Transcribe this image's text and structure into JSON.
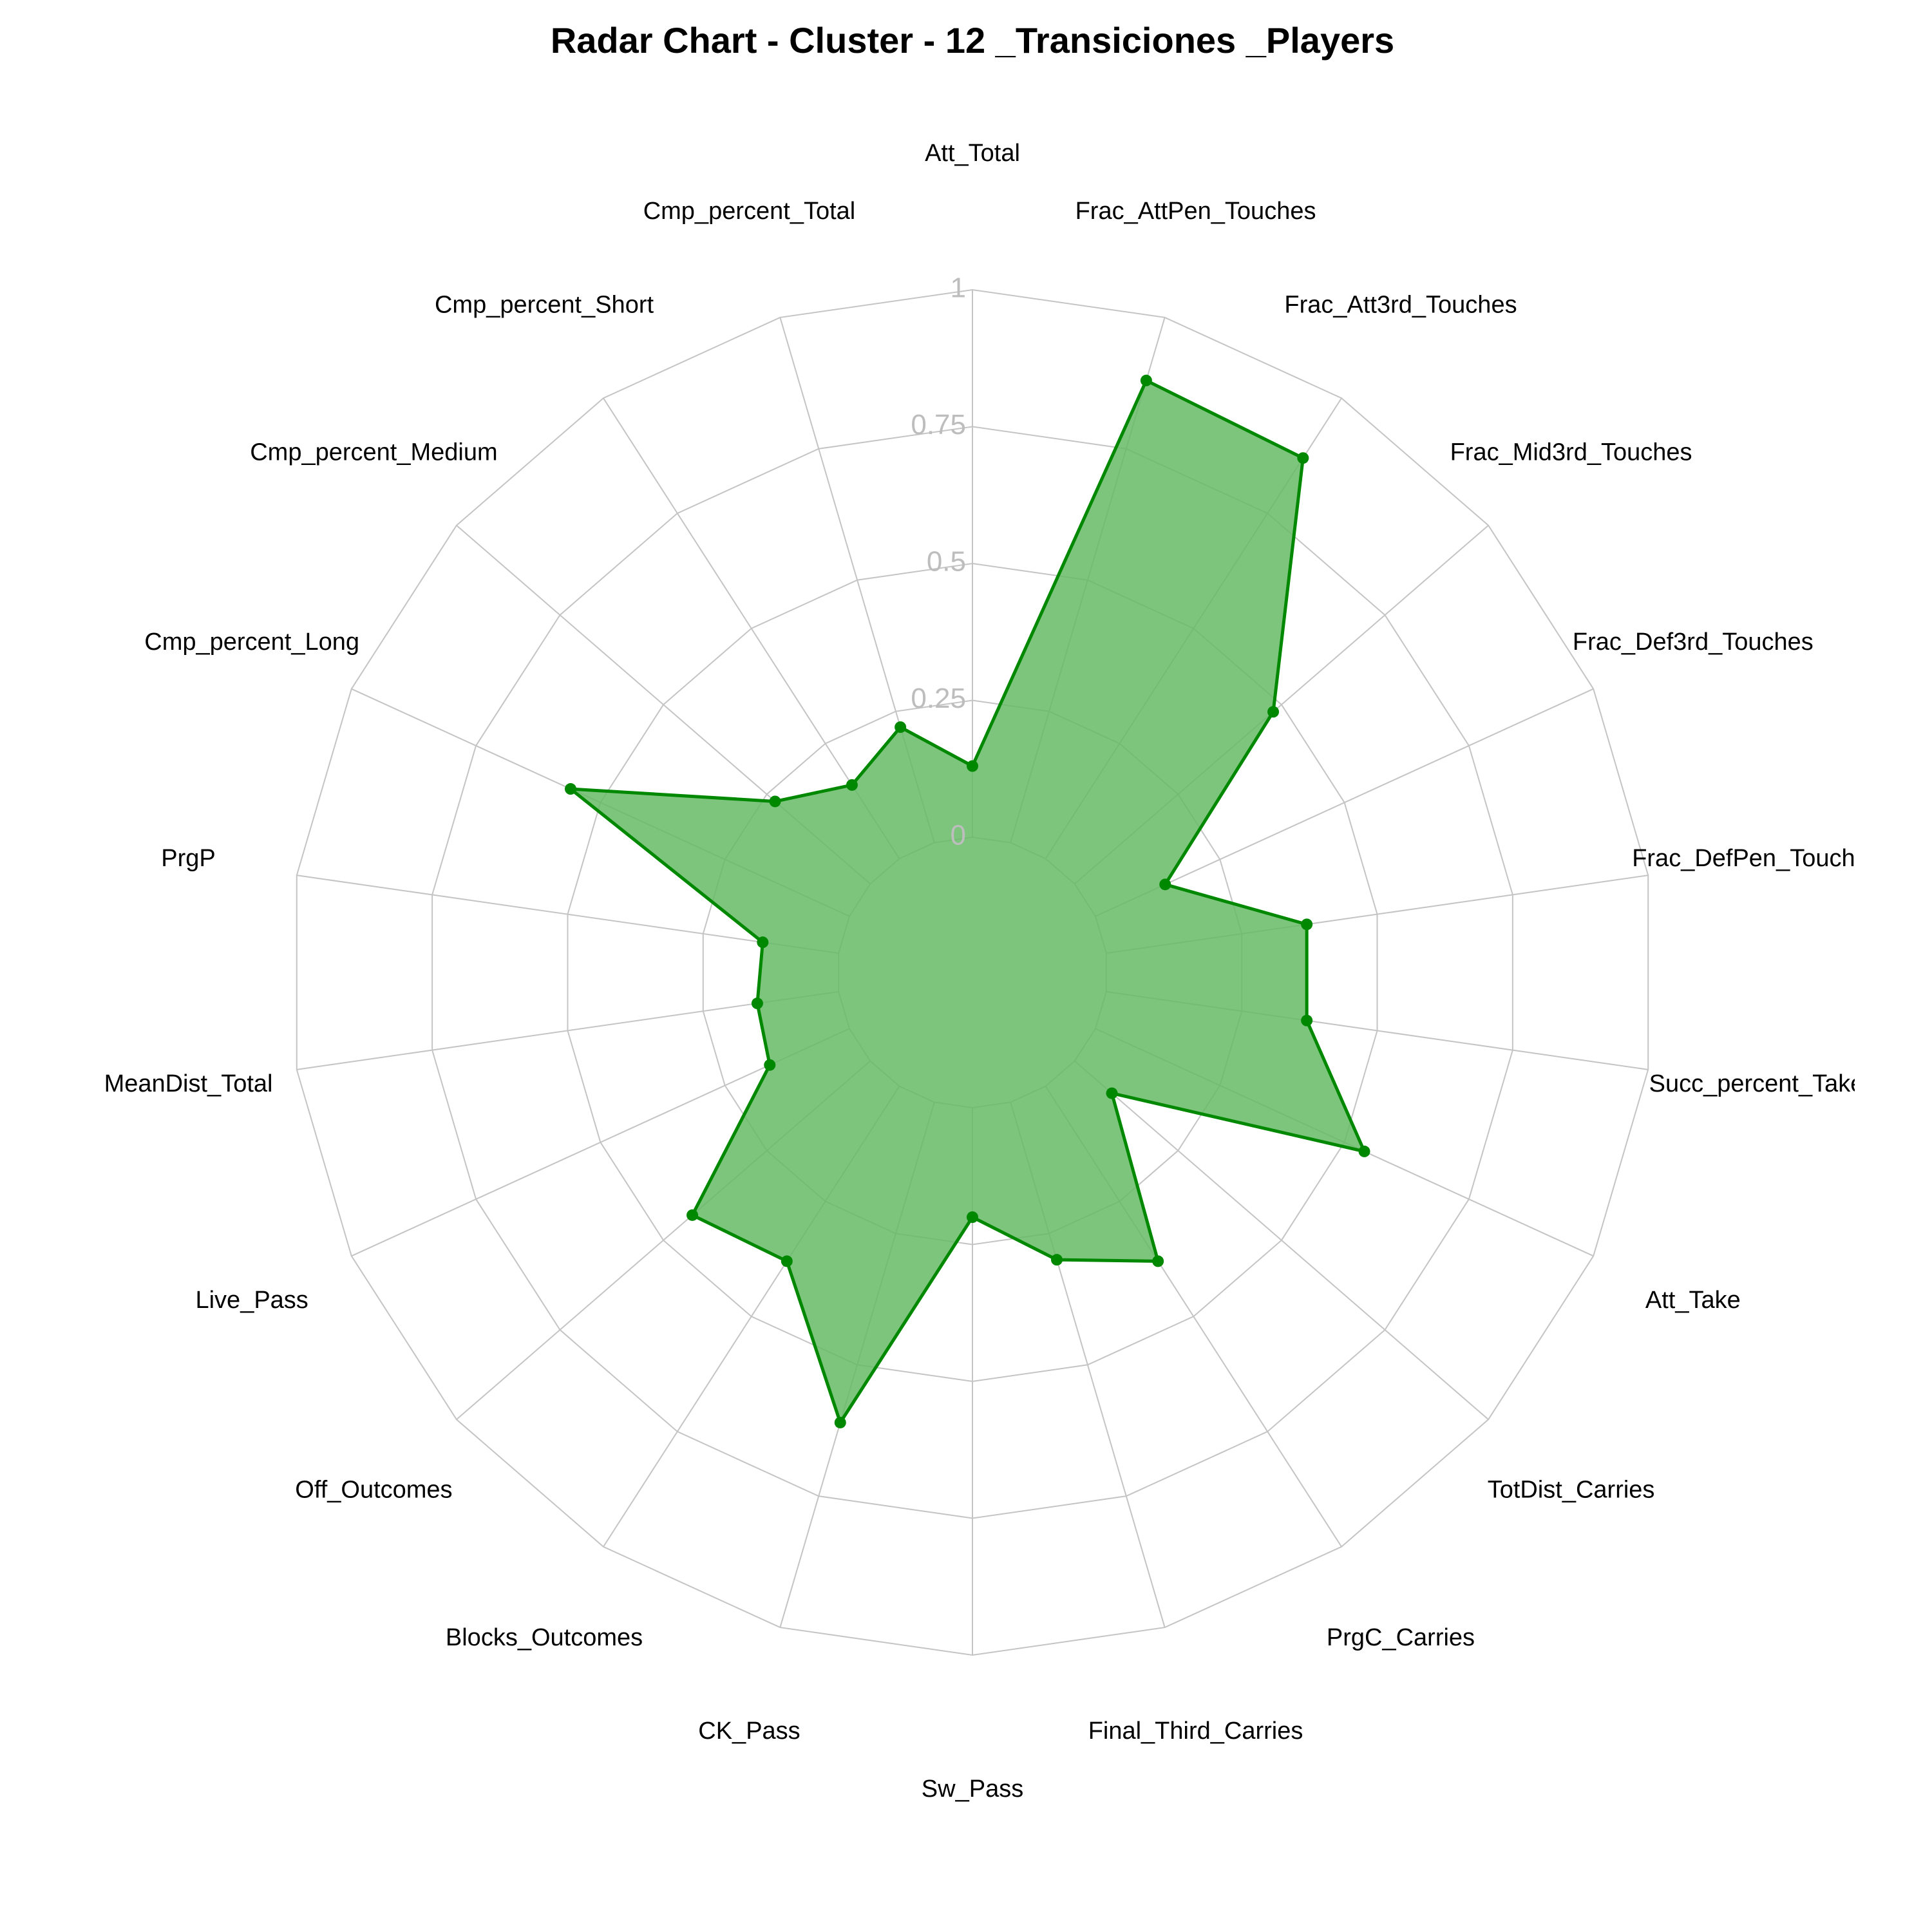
{
  "chart_data": {
    "type": "radar",
    "title": "Radar Chart - Cluster - 12 _Transiciones _Players",
    "rlim": [
      0,
      1
    ],
    "rticks": [
      0,
      0.25,
      0.5,
      0.75,
      1
    ],
    "rtick_labels": [
      "0",
      "0.25",
      "0.5",
      "0.75",
      "1"
    ],
    "grid": true,
    "color": "#008800",
    "fill_color": "#66bb66",
    "axes": [
      "Att_Total",
      "Frac_AttPen_Touches",
      "Frac_Att3rd_Touches",
      "Frac_Mid3rd_Touches",
      "Frac_Def3rd_Touches",
      "Frac_DefPen_Touches",
      "Succ_percent_Take",
      "Att_Take",
      "TotDist_Carries",
      "PrgC_Carries",
      "Final_Third_Carries",
      "Sw_Pass",
      "CK_Pass",
      "Blocks_Outcomes",
      "Off_Outcomes",
      "Live_Pass",
      "MeanDist_Total",
      "PrgP",
      "Cmp_percent_Long",
      "Cmp_percent_Medium",
      "Cmp_percent_Short",
      "Cmp_percent_Total"
    ],
    "values": [
      0.13,
      0.88,
      0.87,
      0.48,
      0.14,
      0.37,
      0.37,
      0.54,
      0.09,
      0.38,
      0.3,
      0.2,
      0.61,
      0.38,
      0.43,
      0.16,
      0.15,
      0.14,
      0.56,
      0.23,
      0.16,
      0.22
    ]
  }
}
